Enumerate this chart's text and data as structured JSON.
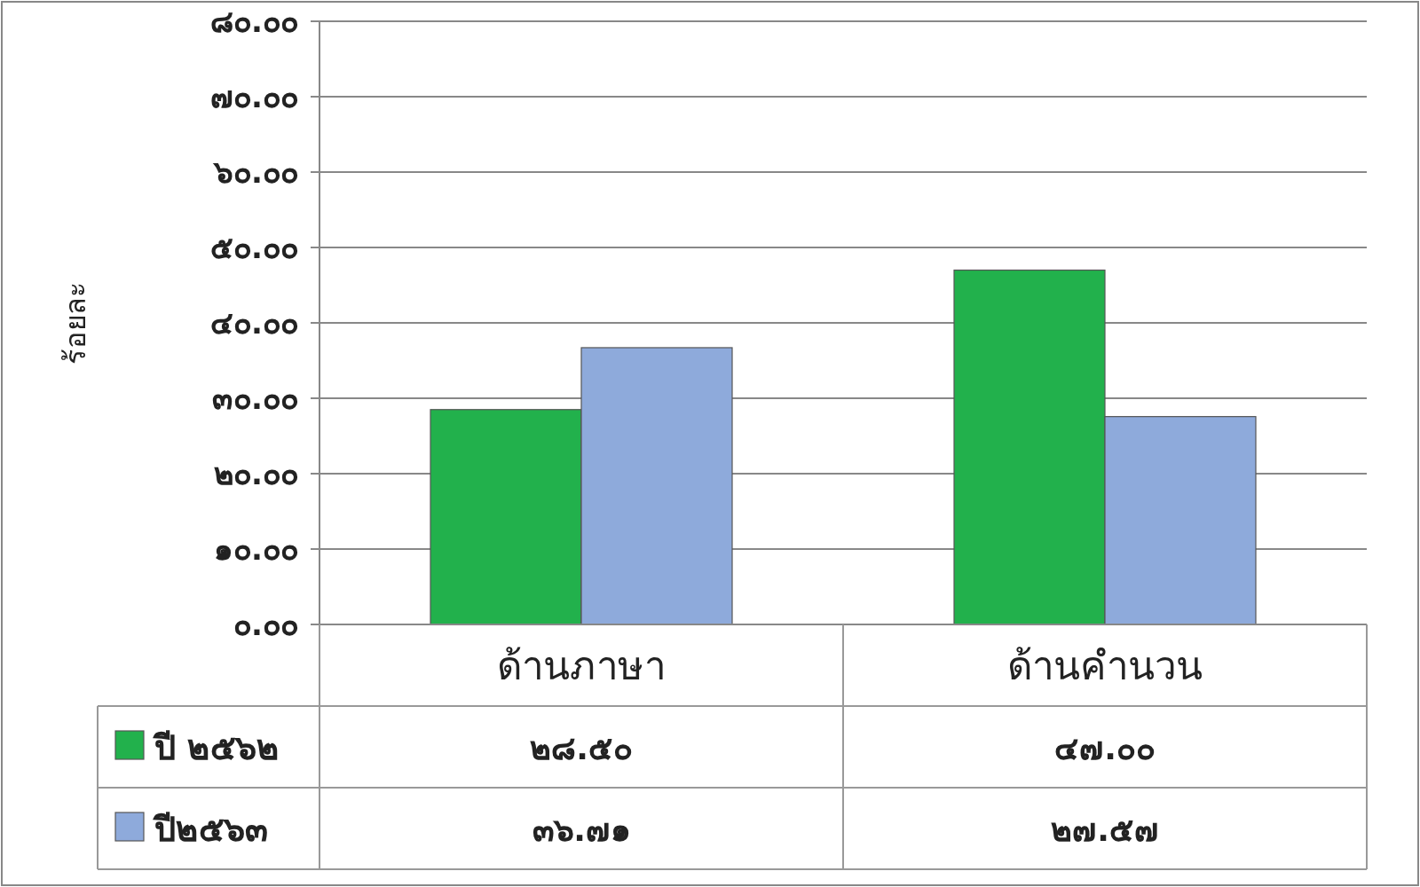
{
  "chart_data": {
    "type": "bar",
    "ylabel": "ร้อยละ",
    "categories": [
      "ด้านภาษา",
      "ด้านคำนวน"
    ],
    "series": [
      {
        "name": "ปี ๒๕๖๒",
        "color": "#22b14c",
        "values": [
          28.5,
          47.0
        ],
        "value_labels": [
          "๒๘.๕๐",
          "๔๗.๐๐"
        ]
      },
      {
        "name": "ปี๒๕๖๓",
        "color": "#8eaadb",
        "values": [
          36.71,
          27.57
        ],
        "value_labels": [
          "๓๖.๗๑",
          "๒๗.๕๗"
        ]
      }
    ],
    "ylim": [
      0,
      80
    ],
    "yticks": [
      {
        "value": 0,
        "label": "๐.๐๐"
      },
      {
        "value": 10,
        "label": "๑๐.๐๐"
      },
      {
        "value": 20,
        "label": "๒๐.๐๐"
      },
      {
        "value": 30,
        "label": "๓๐.๐๐"
      },
      {
        "value": 40,
        "label": "๔๐.๐๐"
      },
      {
        "value": 50,
        "label": "๕๐.๐๐"
      },
      {
        "value": 60,
        "label": "๖๐.๐๐"
      },
      {
        "value": 70,
        "label": "๗๐.๐๐"
      },
      {
        "value": 80,
        "label": "๘๐.๐๐"
      }
    ],
    "grid": "y",
    "legend": "bottom"
  }
}
